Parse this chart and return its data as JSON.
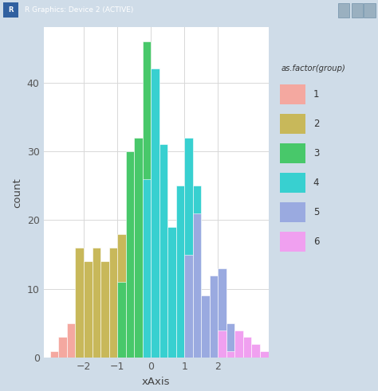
{
  "title": "",
  "xlabel": "xAxis",
  "ylabel": "count",
  "legend_title": "as.factor(group)",
  "ylim": [
    0,
    48
  ],
  "xlim": [
    -3.2,
    3.5
  ],
  "plot_bg_color": "#ffffff",
  "grid_color": "#d8d8d8",
  "groups": [
    {
      "label": "1",
      "color": "#F4A8A0",
      "bins": [
        -3.0,
        -2.75,
        -2.5,
        -2.25,
        -2.0
      ],
      "counts": [
        1,
        3,
        5,
        3,
        3
      ]
    },
    {
      "label": "2",
      "color": "#C8B85A",
      "bins": [
        -2.25,
        -2.0,
        -1.75,
        -1.5,
        -1.25,
        -1.0,
        -0.75
      ],
      "counts": [
        16,
        14,
        16,
        14,
        16,
        18,
        11
      ]
    },
    {
      "label": "3",
      "color": "#48C86A",
      "bins": [
        -1.0,
        -0.75,
        -0.5,
        -0.25,
        0.0,
        0.25
      ],
      "counts": [
        11,
        30,
        32,
        46,
        29,
        26
      ]
    },
    {
      "label": "4",
      "color": "#38D0D0",
      "bins": [
        -0.25,
        0.0,
        0.25,
        0.5,
        0.75,
        1.0,
        1.25
      ],
      "counts": [
        26,
        42,
        31,
        19,
        25,
        32,
        25
      ]
    },
    {
      "label": "5",
      "color": "#9AAAE0",
      "bins": [
        1.0,
        1.25,
        1.5,
        1.75,
        2.0,
        2.25
      ],
      "counts": [
        15,
        21,
        9,
        12,
        13,
        5
      ]
    },
    {
      "label": "6",
      "color": "#F0A0F0",
      "bins": [
        2.0,
        2.25,
        2.5,
        2.75,
        3.0,
        3.25
      ],
      "counts": [
        4,
        1,
        4,
        3,
        2,
        1
      ]
    }
  ],
  "bin_width": 0.25,
  "window_title": "R Graphics: Device 2 (ACTIVE)",
  "window_bg": "#cfdce8",
  "title_bar_color": "#6a9ab8",
  "title_bar_text_color": "#ffffff",
  "button_colors": [
    "#c0c8d0",
    "#c0c8d0",
    "#c0c8d0"
  ]
}
